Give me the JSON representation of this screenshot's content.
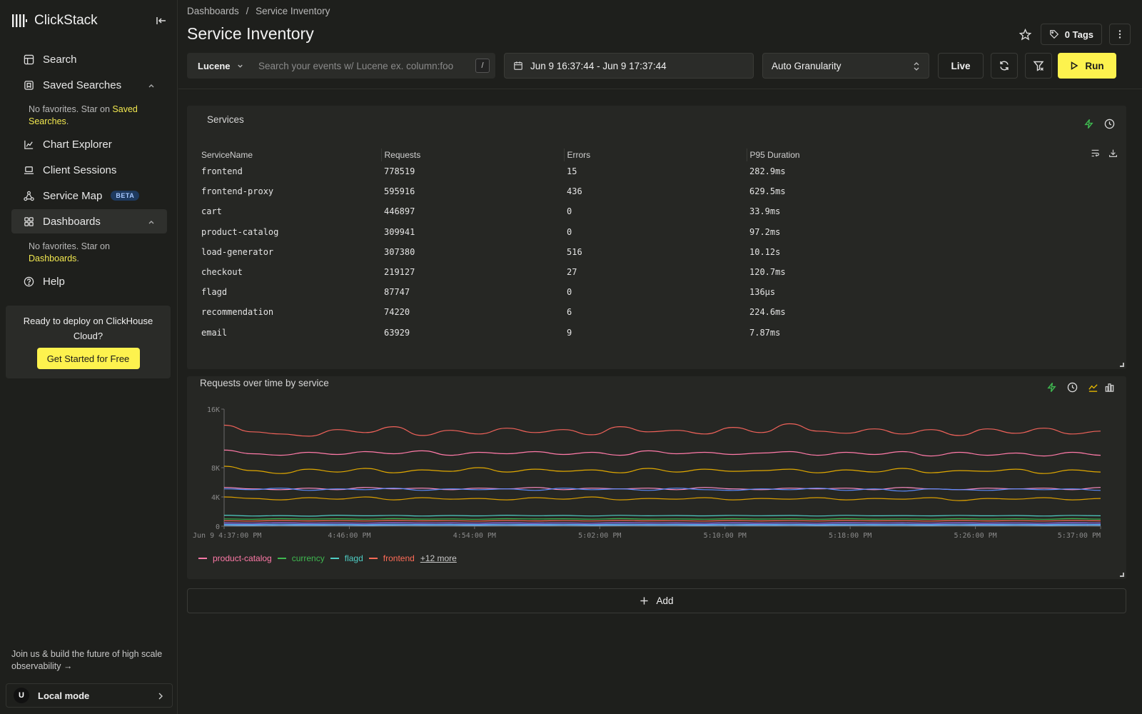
{
  "app": {
    "name": "ClickStack"
  },
  "sidebar": {
    "items": [
      {
        "label": "Search",
        "icon": "table-icon"
      },
      {
        "label": "Saved Searches",
        "icon": "bookmark-icon"
      },
      {
        "label": "Chart Explorer",
        "icon": "chart-line-icon"
      },
      {
        "label": "Client Sessions",
        "icon": "laptop-icon"
      },
      {
        "label": "Service Map",
        "icon": "graph-icon",
        "badge": "BETA"
      },
      {
        "label": "Dashboards",
        "icon": "grid-icon"
      },
      {
        "label": "Help",
        "icon": "help-circle-icon"
      }
    ],
    "saved_note": {
      "prefix": "No favorites. Star on ",
      "link": "Saved Searches",
      "suffix": "."
    },
    "dash_note": {
      "prefix": "No favorites. Star on ",
      "link": "Dashboards",
      "suffix": "."
    },
    "deploy": {
      "text": "Ready to deploy on ClickHouse Cloud?",
      "button": "Get Started for Free"
    },
    "join_text": "Join us & build the future of high scale observability →",
    "user": {
      "initial": "U",
      "label": "Local mode"
    }
  },
  "header": {
    "breadcrumb": [
      "Dashboards",
      "/",
      "Service Inventory"
    ],
    "title": "Service Inventory",
    "tags_label": "0 Tags"
  },
  "toolbar": {
    "language": "Lucene",
    "search_placeholder": "Search your events w/ Lucene ex. column:foo",
    "slash_key": "/",
    "date_range": "Jun 9 16:37:44 - Jun 9 17:37:44",
    "granularity": "Auto Granularity",
    "live_label": "Live",
    "run_label": "Run"
  },
  "services_panel": {
    "title": "Services",
    "columns": [
      "ServiceName",
      "Requests",
      "Errors",
      "P95 Duration"
    ],
    "rows": [
      [
        "frontend",
        "778519",
        "15",
        "282.9ms"
      ],
      [
        "frontend-proxy",
        "595916",
        "436",
        "629.5ms"
      ],
      [
        "cart",
        "446897",
        "0",
        "33.9ms"
      ],
      [
        "product-catalog",
        "309941",
        "0",
        "97.2ms"
      ],
      [
        "load-generator",
        "307380",
        "516",
        "10.12s"
      ],
      [
        "checkout",
        "219127",
        "27",
        "120.7ms"
      ],
      [
        "flagd",
        "87747",
        "0",
        "136µs"
      ],
      [
        "recommendation",
        "74220",
        "6",
        "224.6ms"
      ],
      [
        "email",
        "63929",
        "9",
        "7.87ms"
      ]
    ]
  },
  "chart_panel": {
    "title": "Requests over time by service",
    "more_label": "+12 more"
  },
  "chart_data": {
    "type": "line",
    "xlabel": "",
    "ylabel": "",
    "ylim": [
      0,
      16000
    ],
    "y_ticks": [
      "0",
      "4K",
      "8K",
      "16K"
    ],
    "x_ticks": [
      "Jun 9 4:37:00 PM",
      "4:46:00 PM",
      "4:54:00 PM",
      "5:02:00 PM",
      "5:10:00 PM",
      "5:18:00 PM",
      "5:26:00 PM",
      "5:37:00 PM"
    ],
    "legend": [
      {
        "name": "product-catalog",
        "color": "#ff7aa8"
      },
      {
        "name": "currency",
        "color": "#3fb950"
      },
      {
        "name": "flagd",
        "color": "#4ecdc4"
      },
      {
        "name": "frontend",
        "color": "#ff6b57"
      }
    ],
    "series": [
      {
        "color": "#f0625a",
        "values": [
          13800,
          12900,
          12600,
          12300,
          13200,
          12800,
          13600,
          12400,
          13100,
          12600,
          13400,
          12800,
          13200,
          12500,
          13600,
          12900,
          13100,
          12600,
          13500,
          12800,
          14000,
          13000,
          12700,
          13300,
          12600,
          13200,
          12400,
          13300,
          12700,
          13400,
          12600,
          13000
        ]
      },
      {
        "color": "#ff7aa8",
        "values": [
          10400,
          9900,
          9700,
          10100,
          9800,
          10200,
          9900,
          10300,
          9700,
          10100,
          9900,
          10200,
          9800,
          10100,
          9700,
          10300,
          9900,
          10100,
          9800,
          10000,
          10200,
          9700,
          10100,
          9800,
          10200,
          9600,
          10100,
          9700,
          10000,
          9600,
          10100,
          9700
        ]
      },
      {
        "color": "#e0a800",
        "values": [
          8200,
          7600,
          7200,
          7800,
          7400,
          7900,
          7300,
          7700,
          7500,
          8000,
          7400,
          7800,
          7500,
          7700,
          7300,
          7900,
          7400,
          7800,
          7500,
          7600,
          7800,
          7300,
          7700,
          7400,
          7900,
          7300,
          7600,
          7500,
          7800,
          7200,
          7700,
          7400
        ]
      },
      {
        "color": "#ff8ec7",
        "values": [
          5300,
          5100,
          5000,
          5200,
          5000,
          5300,
          5100,
          5200,
          5000,
          5200,
          5100,
          5300,
          5000,
          5200,
          5100,
          5200,
          5000,
          5300,
          5100,
          5000,
          5200,
          5100,
          5200,
          5000,
          5300,
          5100,
          5000,
          5200,
          5100,
          5200,
          5000,
          5300
        ]
      },
      {
        "color": "#5b8cff",
        "values": [
          5100,
          5000,
          5200,
          4900,
          5100,
          5000,
          5200,
          4900,
          5100,
          5000,
          5100,
          4900,
          5200,
          5000,
          5100,
          4900,
          5200,
          5000,
          4900,
          5100,
          5000,
          5200,
          4900,
          5100,
          4800,
          5100,
          5000,
          4900,
          5100,
          5000,
          5100,
          4900
        ]
      },
      {
        "color": "#d99e00",
        "values": [
          4000,
          3800,
          3600,
          3900,
          3700,
          4000,
          3600,
          3900,
          3700,
          3800,
          3600,
          3900,
          3700,
          4000,
          3600,
          3800,
          3700,
          3900,
          3600,
          3800,
          3700,
          3900,
          3600,
          3800,
          3700,
          3900,
          3500,
          3800,
          3700,
          3900,
          3600,
          3800
        ]
      },
      {
        "color": "#4ecdc4",
        "values": [
          1500,
          1400,
          1450,
          1380,
          1500,
          1420,
          1480,
          1400,
          1460,
          1410,
          1500,
          1430,
          1470,
          1400,
          1490,
          1420,
          1460,
          1410,
          1480,
          1430,
          1470,
          1400,
          1490,
          1420,
          1450,
          1410,
          1480,
          1420,
          1460,
          1400,
          1480,
          1420
        ]
      },
      {
        "color": "#3fb950",
        "values": [
          1000,
          950,
          1020,
          980,
          1010,
          960,
          1030,
          970,
          1000,
          950,
          1020,
          990,
          1010,
          960,
          1030,
          970,
          1000,
          960,
          1020,
          980,
          1010,
          950,
          1030,
          970,
          1000,
          960,
          1020,
          980,
          1010,
          950,
          1030,
          970
        ]
      },
      {
        "color": "#ff6b57",
        "values": [
          750,
          700,
          780,
          720,
          760,
          710,
          790,
          730,
          750,
          700,
          780,
          720,
          760,
          710,
          790,
          730,
          750,
          700,
          780,
          720,
          760,
          710,
          790,
          730,
          750,
          700,
          780,
          720,
          760,
          710,
          790,
          730
        ]
      },
      {
        "color": "#a371f7",
        "values": [
          450,
          420,
          480,
          430,
          460,
          410,
          490,
          440,
          450,
          420,
          480,
          430,
          460,
          410,
          490,
          440,
          450,
          420,
          480,
          430,
          460,
          410,
          490,
          440,
          450,
          420,
          480,
          430,
          460,
          410,
          490,
          440
        ]
      },
      {
        "color": "#58a6ff",
        "values": [
          250,
          230,
          270,
          240,
          260,
          220,
          280,
          240,
          250,
          230,
          270,
          240,
          260,
          220,
          280,
          240,
          250,
          230,
          270,
          240,
          260,
          220,
          280,
          240,
          250,
          230,
          270,
          240,
          260,
          220,
          280,
          240
        ]
      },
      {
        "color": "#79c0ff",
        "values": [
          120,
          110,
          130,
          115,
          125,
          105,
          135,
          115,
          120,
          110,
          130,
          115,
          125,
          105,
          135,
          115,
          120,
          110,
          130,
          115,
          125,
          105,
          135,
          115,
          120,
          110,
          130,
          115,
          125,
          105,
          135,
          115
        ]
      }
    ]
  },
  "add_label": "Add",
  "colors": {
    "accent": "#fdf24e",
    "background": "#1e1f1c",
    "panel": "#262724"
  }
}
